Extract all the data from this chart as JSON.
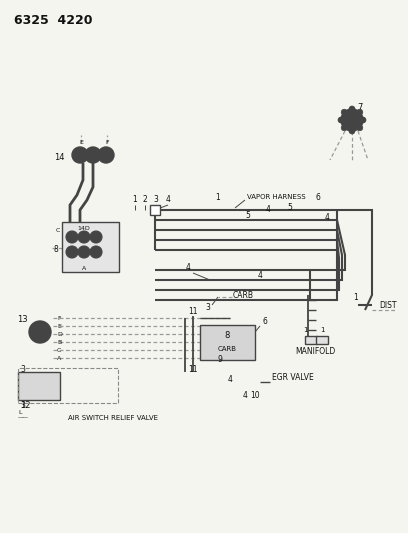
{
  "title": "6325  4220",
  "bg": "#f5f5f0",
  "lc": "#444444",
  "tc": "#111111",
  "figsize": [
    4.08,
    5.33
  ],
  "dpi": 100,
  "labels": {
    "vapor_harness": "VAPOR HARNESS",
    "carb_mid": "CARB",
    "carb_box": "CARB",
    "manifold": "MANIFOLD",
    "dist": "DIST",
    "egr_valve": "EGR VALVE",
    "air_switch": "AIR SWITCH RELIEF VALVE"
  }
}
